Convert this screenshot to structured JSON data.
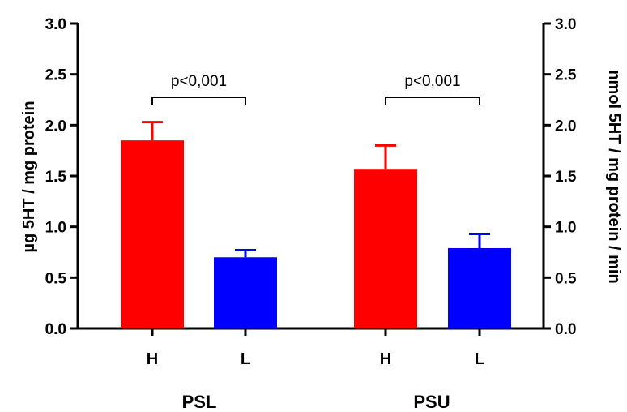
{
  "chart_data": {
    "type": "bar",
    "ylabel_left": "µg 5HT / mg protein",
    "ylabel_right": "nmol 5HT / mg protein / min",
    "ylim": [
      0,
      3.0
    ],
    "yticks": [
      "0.0",
      "0.5",
      "1.0",
      "1.5",
      "2.0",
      "2.5",
      "3.0"
    ],
    "groups": [
      {
        "name": "PSL",
        "annotation": "p<0,001",
        "bars": [
          {
            "label": "H",
            "value": 1.85,
            "error": 0.18,
            "color": "#ff0000"
          },
          {
            "label": "L",
            "value": 0.7,
            "error": 0.07,
            "color": "#0000ff"
          }
        ]
      },
      {
        "name": "PSU",
        "annotation": "p<0,001",
        "bars": [
          {
            "label": "H",
            "value": 1.57,
            "error": 0.23,
            "color": "#ff0000"
          },
          {
            "label": "L",
            "value": 0.79,
            "error": 0.14,
            "color": "#0000ff"
          }
        ]
      }
    ]
  }
}
